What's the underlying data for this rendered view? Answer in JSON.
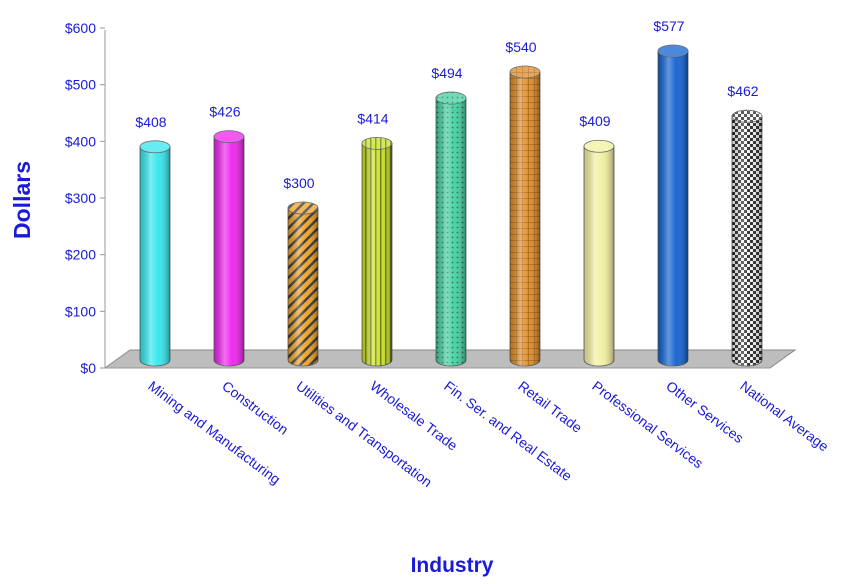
{
  "chart_data": {
    "type": "bar",
    "xlabel": "Industry",
    "ylabel": "Dollars",
    "ylim": [
      0,
      600
    ],
    "yticks": [
      0,
      100,
      200,
      300,
      400,
      500,
      600
    ],
    "ytick_labels": [
      "$0",
      "$100",
      "$200",
      "$300",
      "$400",
      "$500",
      "$600"
    ],
    "categories": [
      "Mining and Manufacturing",
      "Construction",
      "Utilities and Transportation",
      "Wholesale Trade",
      "Fin. Ser. and Real Estate",
      "Retail Trade",
      "Professional Services",
      "Other Services",
      "National Average"
    ],
    "values": [
      408,
      426,
      300,
      414,
      494,
      540,
      409,
      577,
      462
    ],
    "value_labels": [
      "$408",
      "$426",
      "$300",
      "$414",
      "$494",
      "$540",
      "$409",
      "$577",
      "$462"
    ],
    "bar_colors": [
      "#33e6ee",
      "#ee22ee",
      "#f0a020",
      "#c8e020",
      "#40d0a0",
      "#e08a20",
      "#f2f0a0",
      "#1060d0",
      "#d8d8d8"
    ],
    "bar_patterns": [
      "solid",
      "solid",
      "diagonal-stripes",
      "vertical-stripes",
      "dots",
      "grid",
      "solid",
      "solid",
      "checker"
    ],
    "grid": false,
    "legend": "none"
  }
}
